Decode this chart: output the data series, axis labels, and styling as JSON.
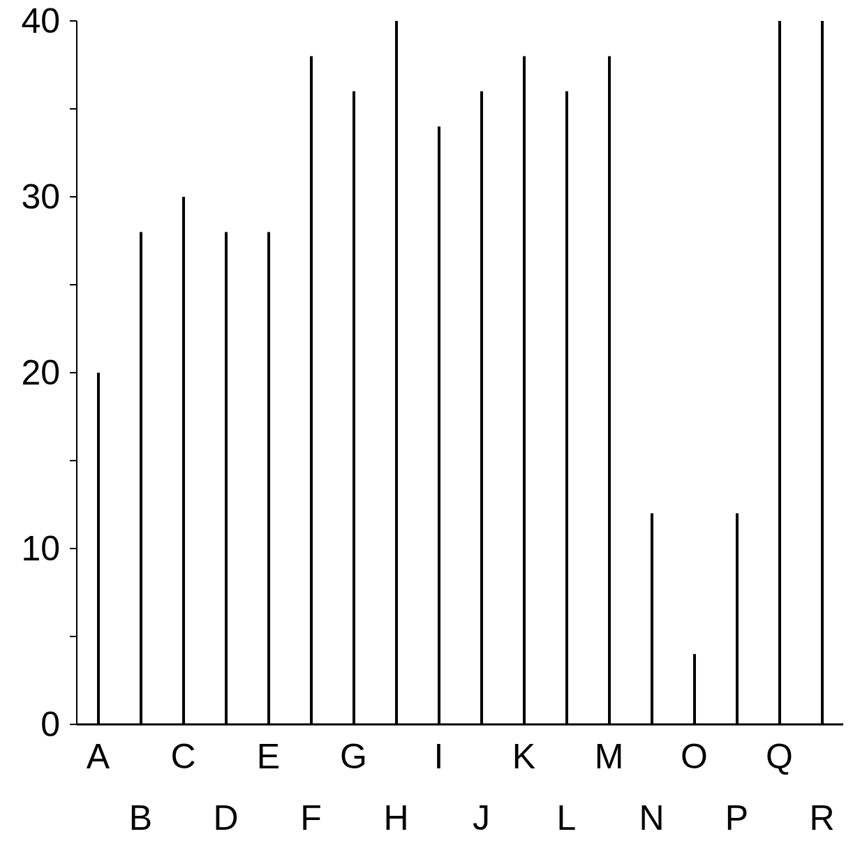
{
  "chart_data": {
    "type": "bar",
    "categories": [
      "A",
      "B",
      "C",
      "D",
      "E",
      "F",
      "G",
      "H",
      "I",
      "J",
      "K",
      "L",
      "M",
      "N",
      "O",
      "P",
      "Q",
      "R"
    ],
    "values": [
      20,
      28,
      30,
      28,
      28,
      38,
      36,
      40,
      34,
      36,
      38,
      36,
      38,
      12,
      4,
      12,
      40,
      40
    ],
    "color": "#000000",
    "ylim": [
      0,
      40
    ],
    "yticks": [
      0,
      {
        "value": 5,
        "label": null
      },
      10,
      {
        "value": 15,
        "label": null
      },
      20,
      {
        "value": 25,
        "label": null
      },
      30,
      {
        "value": 35,
        "label": null
      },
      40
    ],
    "grid": false,
    "legend": false
  }
}
